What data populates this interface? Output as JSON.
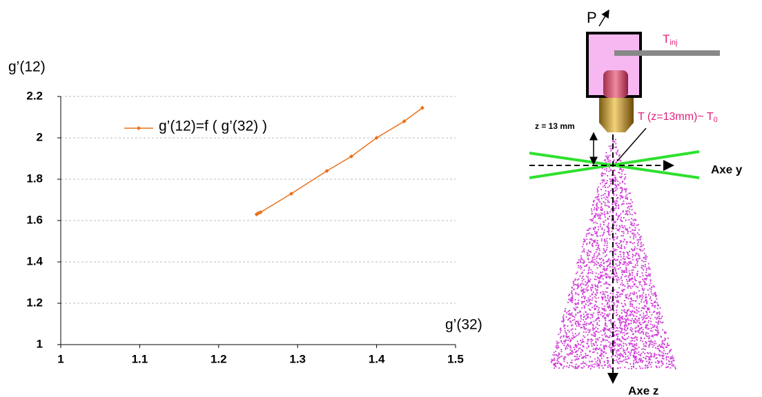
{
  "chart_data": {
    "type": "line",
    "y_label": "g’(12)",
    "x_label": "g’(32)",
    "series": [
      {
        "name": "g’(12)=f ( g’(32) )",
        "color": "#e8701a",
        "x": [
          1.248,
          1.25,
          1.253,
          1.292,
          1.337,
          1.368,
          1.4,
          1.435,
          1.458
        ],
        "values": [
          1.63,
          1.635,
          1.64,
          1.73,
          1.84,
          1.91,
          2.0,
          2.08,
          2.145
        ]
      }
    ],
    "xlim": [
      1,
      1.5
    ],
    "xticks": [
      1,
      1.1,
      1.2,
      1.3,
      1.4,
      1.5
    ],
    "ylim": [
      1,
      2.2
    ],
    "yticks": [
      1,
      1.2,
      1.4,
      1.6,
      1.8,
      2,
      2.2
    ],
    "grid": true
  },
  "diagram": {
    "pressure": "P",
    "injection_temp": {
      "text": "T",
      "sub": "inj"
    },
    "height": "z = 13 mm",
    "temp_note": {
      "text": "T (z=13mm)~ T",
      "sub": "0"
    },
    "axis_y": "Axe y",
    "axis_z": "Axe z"
  }
}
